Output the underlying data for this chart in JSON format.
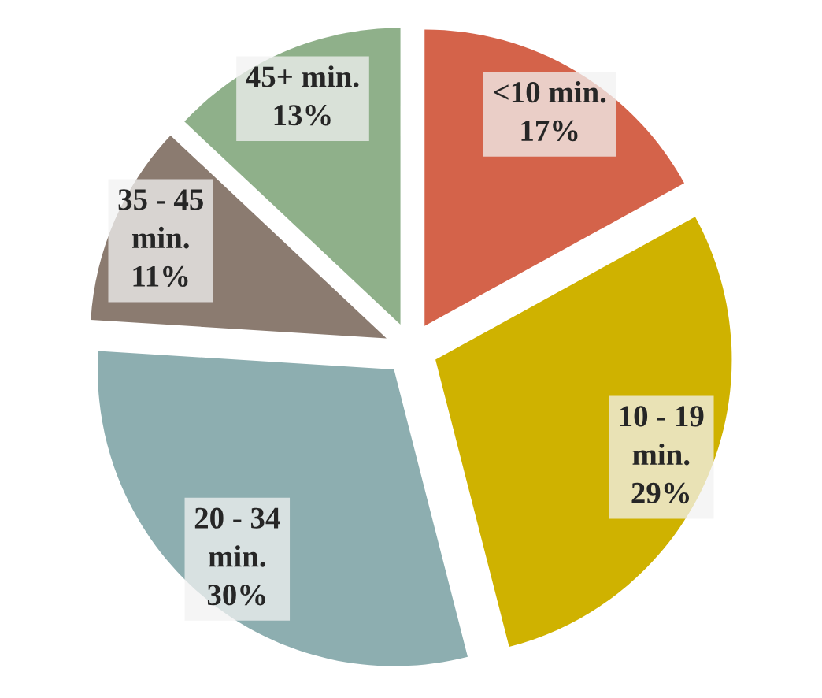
{
  "chart_data": {
    "type": "pie",
    "categories": [
      "<10 min.",
      "10 - 19 min.",
      "20 - 34 min.",
      "35 - 45 min.",
      "45+ min."
    ],
    "values": [
      17,
      29,
      30,
      11,
      13
    ],
    "value_labels": [
      "17%",
      "29%",
      "30%",
      "11%",
      "13%"
    ],
    "colors": [
      "#d4634a",
      "#cfb200",
      "#8daeb0",
      "#8b7b70",
      "#8fb08a"
    ],
    "legend": false
  }
}
